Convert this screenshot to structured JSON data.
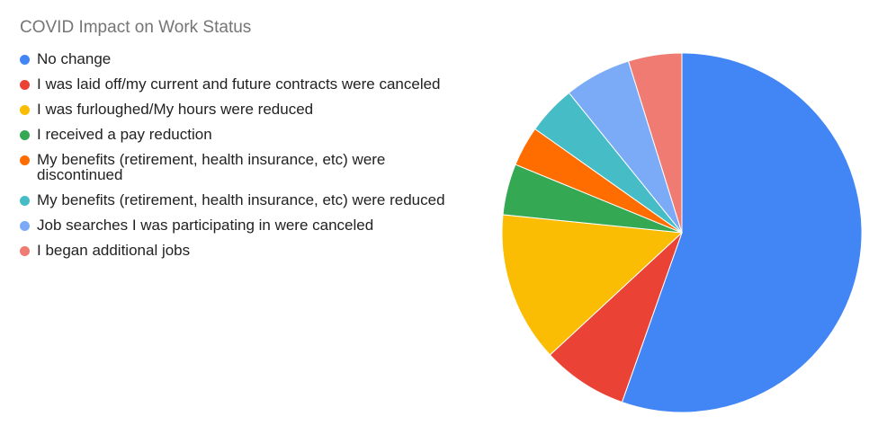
{
  "chart_data": {
    "type": "pie",
    "title": "COVID Impact on Work Status",
    "legend_position": "left",
    "slices": [
      {
        "label": "No change",
        "value": 55.4,
        "color": "#4285F4"
      },
      {
        "label": "I was laid off/my current and future contracts were canceled",
        "value": 7.7,
        "color": "#EA4335"
      },
      {
        "label": "I was furloughed/My hours were reduced",
        "value": 13.5,
        "color": "#FBBC04"
      },
      {
        "label": "I received a pay reduction",
        "value": 4.6,
        "color": "#34A853"
      },
      {
        "label": "My benefits (retirement, health insurance, etc) were discontinued",
        "value": 3.6,
        "color": "#FF6D01"
      },
      {
        "label": "My benefits (retirement, health insurance, etc) were reduced",
        "value": 4.4,
        "color": "#46BDC6"
      },
      {
        "label": "Job searches I was participating in were canceled",
        "value": 6.0,
        "color": "#7BAAF7"
      },
      {
        "label": "I began additional jobs",
        "value": 4.8,
        "color": "#F07B72"
      }
    ]
  }
}
